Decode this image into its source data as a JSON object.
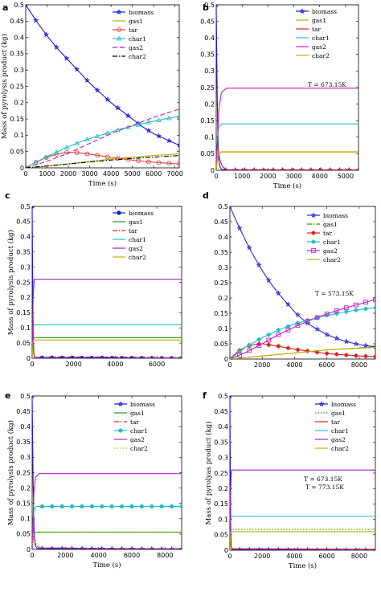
{
  "chart_data": [
    {
      "panel": "a",
      "type": "line",
      "xlabel": "Time (s)",
      "ylabel": "Mass of pyrolysis product (kg)",
      "xlim": [
        0,
        7200
      ],
      "ylim": [
        0,
        0.5
      ],
      "xticks": [
        "0",
        "1000",
        "2000",
        "3000",
        "4000",
        "5000",
        "6000",
        "7000"
      ],
      "yticks": [
        "0",
        "0.05",
        "0.1",
        "0.15",
        "0.2",
        "0.25",
        "0.3",
        "0.35",
        "0.4",
        "0.45",
        "0.5"
      ],
      "annotation": "",
      "legend": "top-right",
      "series": [
        {
          "name": "biomass",
          "color": "#1a1adb",
          "style": "solid",
          "marker": "star",
          "x": [
            0,
            500,
            1000,
            1500,
            2000,
            2500,
            3000,
            3500,
            4000,
            4500,
            5000,
            5500,
            6000,
            6500,
            7000,
            7200
          ],
          "y": [
            0.5,
            0.45,
            0.405,
            0.365,
            0.33,
            0.295,
            0.26,
            0.23,
            0.2,
            0.175,
            0.15,
            0.125,
            0.105,
            0.09,
            0.075,
            0.07
          ]
        },
        {
          "name": "gas1",
          "color": "#b5b500",
          "style": "solid",
          "marker": "none",
          "x": [
            0,
            1000,
            2000,
            3000,
            4000,
            5000,
            6000,
            7200
          ],
          "y": [
            0,
            0.005,
            0.012,
            0.02,
            0.027,
            0.033,
            0.038,
            0.043
          ]
        },
        {
          "name": "tar",
          "color": "#e04040",
          "style": "solid",
          "marker": "circle",
          "x": [
            0,
            500,
            1000,
            1500,
            2000,
            2500,
            3000,
            3500,
            4000,
            4500,
            5000,
            5500,
            6000,
            6500,
            7200
          ],
          "y": [
            0,
            0.018,
            0.033,
            0.043,
            0.048,
            0.046,
            0.042,
            0.037,
            0.032,
            0.028,
            0.024,
            0.02,
            0.017,
            0.015,
            0.012
          ]
        },
        {
          "name": "char1",
          "color": "#20c0c0",
          "style": "solid",
          "marker": "triangle",
          "x": [
            0,
            500,
            1000,
            1500,
            2000,
            2500,
            3000,
            3500,
            4000,
            4500,
            5000,
            5500,
            6000,
            6500,
            7200
          ],
          "y": [
            0,
            0.018,
            0.035,
            0.05,
            0.065,
            0.078,
            0.09,
            0.1,
            0.11,
            0.12,
            0.128,
            0.136,
            0.143,
            0.15,
            0.158
          ]
        },
        {
          "name": "gas2",
          "color": "#c020c0",
          "style": "dashed",
          "marker": "none",
          "x": [
            0,
            1000,
            2000,
            3000,
            4000,
            5000,
            6000,
            7200
          ],
          "y": [
            0,
            0.02,
            0.045,
            0.075,
            0.105,
            0.13,
            0.155,
            0.18
          ]
        },
        {
          "name": "char2",
          "color": "#000000",
          "style": "dashdot",
          "marker": "none",
          "x": [
            0,
            1000,
            2000,
            3000,
            4000,
            5000,
            6000,
            7200
          ],
          "y": [
            0,
            0.006,
            0.012,
            0.018,
            0.024,
            0.029,
            0.033,
            0.038
          ]
        }
      ]
    },
    {
      "panel": "b",
      "type": "line",
      "xlabel": "Time (s)",
      "ylabel": "",
      "xlim": [
        0,
        5500
      ],
      "ylim": [
        0,
        0.5
      ],
      "xticks": [
        "0",
        "1000",
        "2000",
        "3000",
        "4000",
        "5000"
      ],
      "yticks": [
        "0",
        "0.05",
        "0.1",
        "0.15",
        "0.2",
        "0.25",
        "0.3",
        "0.35",
        "0.4",
        "0.45",
        "0.5"
      ],
      "annotation": "T = 673.15K",
      "legend": "top-right",
      "series": [
        {
          "name": "biomass",
          "color": "#1a1adb",
          "style": "solid",
          "marker": "star",
          "x": [
            0,
            20,
            40,
            60,
            80,
            100,
            150,
            200,
            300,
            5500
          ],
          "y": [
            0.5,
            0.35,
            0.22,
            0.12,
            0.06,
            0.03,
            0.01,
            0.003,
            0.001,
            0.001
          ]
        },
        {
          "name": "gas1",
          "color": "#b5b500",
          "style": "solid",
          "marker": "none",
          "x": [
            0,
            50,
            100,
            200,
            5500
          ],
          "y": [
            0,
            0.035,
            0.05,
            0.056,
            0.056
          ]
        },
        {
          "name": "tar",
          "color": "#e02020",
          "style": "solid",
          "marker": "none",
          "x": [
            0,
            40,
            80,
            150,
            250,
            400,
            5500
          ],
          "y": [
            0,
            0.08,
            0.06,
            0.03,
            0.01,
            0.002,
            0.001
          ]
        },
        {
          "name": "char1",
          "color": "#20c0c0",
          "style": "solid",
          "marker": "none",
          "x": [
            0,
            50,
            100,
            200,
            5500
          ],
          "y": [
            0,
            0.1,
            0.13,
            0.14,
            0.14
          ]
        },
        {
          "name": "gas2",
          "color": "#c020c0",
          "style": "solid",
          "marker": "none",
          "x": [
            0,
            100,
            200,
            400,
            5500
          ],
          "y": [
            0,
            0.18,
            0.235,
            0.248,
            0.248
          ]
        },
        {
          "name": "char2",
          "color": "#e0a000",
          "style": "solid",
          "marker": "none",
          "x": [
            0,
            50,
            100,
            200,
            5500
          ],
          "y": [
            0,
            0.04,
            0.052,
            0.055,
            0.055
          ]
        }
      ]
    },
    {
      "panel": "c",
      "type": "line",
      "xlabel": "",
      "ylabel": "Mass of pyrolysis product (kg)",
      "xlim": [
        0,
        7200
      ],
      "ylim": [
        0,
        0.5
      ],
      "xticks": [
        "0",
        "2000",
        "4000",
        "6000"
      ],
      "yticks": [
        "0",
        "0.05",
        "0.1",
        "0.15",
        "0.2",
        "0.25",
        "0.3",
        "0.35",
        "0.4",
        "0.45",
        "0.5"
      ],
      "annotation": "",
      "legend": "top-right",
      "series": [
        {
          "name": "biomass",
          "color": "#1a1adb",
          "style": "solid",
          "marker": "dot",
          "x": [
            0,
            20,
            40,
            60,
            80,
            100,
            150,
            7200
          ],
          "y": [
            0.5,
            0.3,
            0.15,
            0.06,
            0.02,
            0.008,
            0.002,
            0.0
          ]
        },
        {
          "name": "gas1",
          "color": "#1a9a1a",
          "style": "solid",
          "marker": "none",
          "x": [
            0,
            40,
            80,
            7200
          ],
          "y": [
            0,
            0.055,
            0.068,
            0.068
          ]
        },
        {
          "name": "tar",
          "color": "#e02020",
          "style": "dashdot",
          "marker": "none",
          "x": [
            0,
            30,
            60,
            120,
            7200
          ],
          "y": [
            0,
            0.04,
            0.02,
            0.005,
            0.003
          ]
        },
        {
          "name": "char1",
          "color": "#20c0c0",
          "style": "solid",
          "marker": "none",
          "x": [
            0,
            40,
            80,
            7200
          ],
          "y": [
            0,
            0.09,
            0.11,
            0.11
          ]
        },
        {
          "name": "gas2",
          "color": "#a020c0",
          "style": "solid",
          "marker": "none",
          "x": [
            0,
            50,
            100,
            7200
          ],
          "y": [
            0,
            0.2,
            0.26,
            0.26
          ]
        },
        {
          "name": "char2",
          "color": "#c0b000",
          "style": "solid",
          "marker": "none",
          "x": [
            0,
            40,
            80,
            7200
          ],
          "y": [
            0,
            0.05,
            0.06,
            0.06
          ]
        }
      ]
    },
    {
      "panel": "d",
      "type": "line",
      "xlabel": "",
      "ylabel": "",
      "xlim": [
        0,
        9000
      ],
      "ylim": [
        0,
        0.5
      ],
      "xticks": [
        "0",
        "2000",
        "4000",
        "6000",
        "8000"
      ],
      "yticks": [
        "0",
        "0.05",
        "0.1",
        "0.15",
        "0.2",
        "0.25",
        "0.3",
        "0.35",
        "0.4",
        "0.45",
        "0.5"
      ],
      "annotation": "T = 573.15K",
      "legend": "top-right",
      "series": [
        {
          "name": "biomass",
          "color": "#2a2ad8",
          "style": "solid",
          "marker": "star",
          "x": [
            0,
            500,
            1000,
            1500,
            2000,
            2500,
            3000,
            3500,
            4000,
            4500,
            5000,
            6000,
            7000,
            8000,
            9000
          ],
          "y": [
            0.5,
            0.44,
            0.385,
            0.335,
            0.29,
            0.25,
            0.215,
            0.185,
            0.155,
            0.13,
            0.11,
            0.08,
            0.06,
            0.047,
            0.04
          ]
        },
        {
          "name": "gas1",
          "color": "#1a9a1a",
          "style": "dashdot",
          "marker": "none",
          "x": [
            0,
            2000,
            4000,
            6000,
            9000
          ],
          "y": [
            0,
            0.01,
            0.02,
            0.03,
            0.04
          ]
        },
        {
          "name": "tar",
          "color": "#e02020",
          "style": "solid",
          "marker": "diamond",
          "x": [
            0,
            500,
            1000,
            1500,
            2000,
            2500,
            3000,
            3500,
            4000,
            5000,
            6000,
            7000,
            8000,
            9000
          ],
          "y": [
            0,
            0.025,
            0.04,
            0.048,
            0.05,
            0.046,
            0.042,
            0.037,
            0.032,
            0.025,
            0.018,
            0.014,
            0.01,
            0.008
          ]
        },
        {
          "name": "char1",
          "color": "#20c0c0",
          "style": "solid",
          "marker": "diamond",
          "x": [
            0,
            500,
            1000,
            1500,
            2000,
            2500,
            3000,
            3500,
            4000,
            5000,
            6000,
            7000,
            8000,
            9000
          ],
          "y": [
            0,
            0.02,
            0.04,
            0.055,
            0.07,
            0.082,
            0.095,
            0.105,
            0.115,
            0.13,
            0.143,
            0.153,
            0.162,
            0.168
          ]
        },
        {
          "name": "gas2",
          "color": "#c020c0",
          "style": "solid",
          "marker": "square",
          "x": [
            0,
            1000,
            2000,
            3000,
            4000,
            5000,
            6000,
            7000,
            8000,
            9000
          ],
          "y": [
            0,
            0.022,
            0.05,
            0.08,
            0.105,
            0.128,
            0.148,
            0.165,
            0.18,
            0.195
          ]
        },
        {
          "name": "char2",
          "color": "#c0b000",
          "style": "solid",
          "marker": "none",
          "x": [
            0,
            2000,
            4000,
            6000,
            9000
          ],
          "y": [
            0,
            0.01,
            0.02,
            0.03,
            0.038
          ]
        }
      ]
    },
    {
      "panel": "e",
      "type": "line",
      "xlabel": "Time (s)",
      "ylabel": "Mass of pyrolysis product (kg)",
      "xlim": [
        0,
        9000
      ],
      "ylim": [
        0,
        0.5
      ],
      "xticks": [
        "0",
        "2000",
        "4000",
        "6000",
        "8000"
      ],
      "yticks": [
        "0",
        "0.05",
        "0.1",
        "0.15",
        "0.2",
        "0.25",
        "0.3",
        "0.35",
        "0.4",
        "0.45",
        "0.5"
      ],
      "annotation": "T = 673.15K",
      "legend": "top-right",
      "series": [
        {
          "name": "biomass",
          "color": "#1a1adb",
          "style": "solid",
          "marker": "star",
          "x": [
            0,
            30,
            60,
            90,
            120,
            150,
            200,
            300,
            9000
          ],
          "y": [
            0.5,
            0.35,
            0.22,
            0.12,
            0.06,
            0.03,
            0.01,
            0.003,
            0.001
          ]
        },
        {
          "name": "gas1",
          "color": "#1a9a1a",
          "style": "solid",
          "marker": "none",
          "x": [
            0,
            60,
            120,
            200,
            9000
          ],
          "y": [
            0,
            0.035,
            0.05,
            0.056,
            0.056
          ]
        },
        {
          "name": "tar",
          "color": "#e02020",
          "style": "dashdot",
          "marker": "none",
          "x": [
            0,
            50,
            100,
            200,
            400,
            9000
          ],
          "y": [
            0,
            0.08,
            0.05,
            0.02,
            0.005,
            0.002
          ]
        },
        {
          "name": "char1",
          "color": "#20c0c0",
          "style": "solid",
          "marker": "dot",
          "x": [
            0,
            60,
            120,
            250,
            9000
          ],
          "y": [
            0,
            0.1,
            0.13,
            0.14,
            0.14
          ]
        },
        {
          "name": "gas2",
          "color": "#c020c0",
          "style": "solid",
          "marker": "none",
          "x": [
            0,
            100,
            200,
            400,
            9000
          ],
          "y": [
            0,
            0.18,
            0.235,
            0.247,
            0.247
          ]
        },
        {
          "name": "char2",
          "color": "#c0b000",
          "style": "dotted",
          "marker": "none",
          "x": [
            0,
            60,
            120,
            200,
            9000
          ],
          "y": [
            0,
            0.04,
            0.052,
            0.057,
            0.057
          ]
        }
      ]
    },
    {
      "panel": "f",
      "type": "line",
      "xlabel": "Time (s)",
      "ylabel": "Mass of pyrolyas product (kg)",
      "xlim": [
        0,
        9000
      ],
      "ylim": [
        0,
        0.5
      ],
      "xticks": [
        "0",
        "2000",
        "4000",
        "6000",
        "8000"
      ],
      "yticks": [
        "0",
        "0.05",
        "0.1",
        "0.15",
        "0.2",
        "0.25",
        "0.3",
        "0.35",
        "0.4",
        "0.45",
        "0.5"
      ],
      "annotation": "T = 773.15K",
      "legend": "top-right",
      "series": [
        {
          "name": "biomass",
          "color": "#1a1adb",
          "style": "solid",
          "marker": "star",
          "x": [
            0,
            20,
            40,
            60,
            80,
            100,
            150,
            9000
          ],
          "y": [
            0.5,
            0.3,
            0.15,
            0.06,
            0.02,
            0.008,
            0.002,
            0.0
          ]
        },
        {
          "name": "gas1",
          "color": "#1a9a1a",
          "style": "dotted",
          "marker": "none",
          "x": [
            0,
            40,
            80,
            9000
          ],
          "y": [
            0,
            0.055,
            0.068,
            0.068
          ]
        },
        {
          "name": "tar",
          "color": "#e02020",
          "style": "solid",
          "marker": "none",
          "x": [
            0,
            30,
            60,
            120,
            9000
          ],
          "y": [
            0,
            0.04,
            0.02,
            0.005,
            0.003
          ]
        },
        {
          "name": "char1",
          "color": "#20c0c0",
          "style": "solid",
          "marker": "none",
          "x": [
            0,
            40,
            80,
            9000
          ],
          "y": [
            0,
            0.09,
            0.11,
            0.11
          ]
        },
        {
          "name": "gas2",
          "color": "#a020c0",
          "style": "solid",
          "marker": "none",
          "x": [
            0,
            50,
            100,
            9000
          ],
          "y": [
            0,
            0.2,
            0.26,
            0.26
          ]
        },
        {
          "name": "char2",
          "color": "#c0b000",
          "style": "solid",
          "marker": "none",
          "x": [
            0,
            40,
            80,
            9000
          ],
          "y": [
            0,
            0.05,
            0.06,
            0.06
          ]
        }
      ]
    }
  ]
}
